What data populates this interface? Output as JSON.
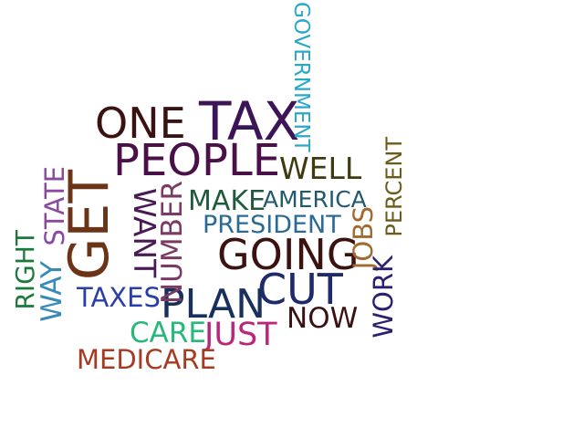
{
  "words": {
    "tax": {
      "text": "TAX",
      "color": "#3c1558"
    },
    "one": {
      "text": "ONE",
      "color": "#3b1212"
    },
    "people": {
      "text": "PEOPLE",
      "color": "#4a1048"
    },
    "government": {
      "text": "GOVERNMENT",
      "color": "#2aa7c9"
    },
    "well": {
      "text": "WELL",
      "color": "#3f3a10"
    },
    "get": {
      "text": "GET",
      "color": "#6b3416"
    },
    "state": {
      "text": "STATE",
      "color": "#8a4aa0"
    },
    "want": {
      "text": "WANT",
      "color": "#4a1a55"
    },
    "number": {
      "text": "NUMBER",
      "color": "#7a3a63"
    },
    "make": {
      "text": "MAKE",
      "color": "#1f5a3d"
    },
    "america": {
      "text": "AMERICA",
      "color": "#1f5a6e"
    },
    "percent": {
      "text": "PERCENT",
      "color": "#6b5a1a"
    },
    "president": {
      "text": "PRESIDENT",
      "color": "#2a6a96"
    },
    "jobs": {
      "text": "JOBS",
      "color": "#a06a30"
    },
    "going": {
      "text": "GOING",
      "color": "#3b1210"
    },
    "right": {
      "text": "RIGHT",
      "color": "#1a7a3a"
    },
    "way": {
      "text": "WAY",
      "color": "#3a8ab8"
    },
    "work": {
      "text": "WORK",
      "color": "#2a2070"
    },
    "cut": {
      "text": "CUT",
      "color": "#1f2a6e"
    },
    "taxes": {
      "text": "TAXES",
      "color": "#2a3ea8"
    },
    "plan": {
      "text": "PLAN",
      "color": "#18305a"
    },
    "now": {
      "text": "NOW",
      "color": "#3b1212"
    },
    "care": {
      "text": "CARE",
      "color": "#2ab87a"
    },
    "just": {
      "text": "JUST",
      "color": "#b8287a"
    },
    "medicare": {
      "text": "MEDICARE",
      "color": "#a83a22"
    }
  }
}
